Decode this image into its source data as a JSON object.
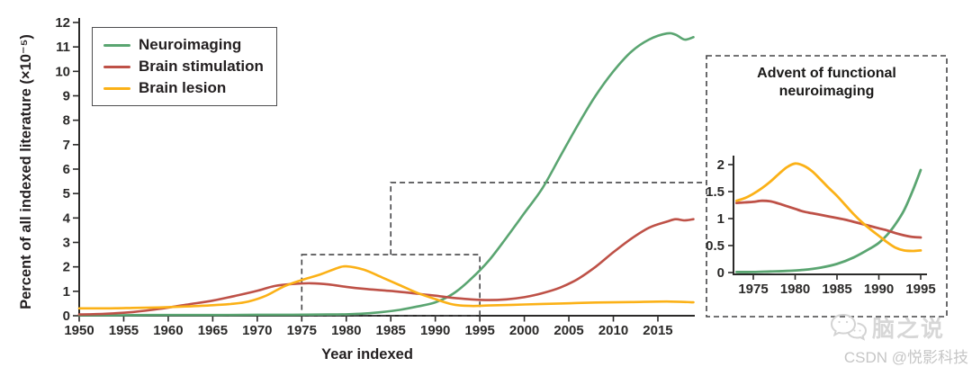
{
  "chart_data": [
    {
      "type": "line",
      "title": "",
      "xlabel": "Year indexed",
      "ylabel": "Percent of all indexed literature (×10⁻⁵)",
      "xlim": [
        1950,
        2019
      ],
      "ylim": [
        0,
        12
      ],
      "x_ticks": [
        1950,
        1955,
        1960,
        1965,
        1970,
        1975,
        1980,
        1985,
        1990,
        1995,
        2000,
        2005,
        2010,
        2015
      ],
      "y_ticks": [
        0,
        1,
        2,
        3,
        4,
        5,
        6,
        7,
        8,
        9,
        10,
        11,
        12
      ],
      "grid": false,
      "legend_position": "upper-left",
      "series": [
        {
          "name": "Neuroimaging",
          "color": "#5aa571",
          "points": [
            [
              1950,
              0.02
            ],
            [
              1954,
              0.02
            ],
            [
              1958,
              0.03
            ],
            [
              1962,
              0.03
            ],
            [
              1966,
              0.03
            ],
            [
              1970,
              0.04
            ],
            [
              1974,
              0.04
            ],
            [
              1978,
              0.05
            ],
            [
              1980,
              0.06
            ],
            [
              1982,
              0.09
            ],
            [
              1984,
              0.15
            ],
            [
              1986,
              0.24
            ],
            [
              1988,
              0.38
            ],
            [
              1990,
              0.55
            ],
            [
              1992,
              0.9
            ],
            [
              1994,
              1.5
            ],
            [
              1996,
              2.25
            ],
            [
              1998,
              3.2
            ],
            [
              2000,
              4.2
            ],
            [
              2002,
              5.2
            ],
            [
              2004,
              6.5
            ],
            [
              2006,
              7.8
            ],
            [
              2008,
              9.0
            ],
            [
              2010,
              10.0
            ],
            [
              2012,
              10.8
            ],
            [
              2014,
              11.3
            ],
            [
              2016,
              11.55
            ],
            [
              2017,
              11.5
            ],
            [
              2018,
              11.3
            ],
            [
              2019,
              11.4
            ]
          ]
        },
        {
          "name": "Brain stimulation",
          "color": "#be5147",
          "points": [
            [
              1950,
              0.05
            ],
            [
              1953,
              0.08
            ],
            [
              1956,
              0.15
            ],
            [
              1959,
              0.28
            ],
            [
              1962,
              0.45
            ],
            [
              1965,
              0.62
            ],
            [
              1968,
              0.85
            ],
            [
              1970,
              1.02
            ],
            [
              1972,
              1.22
            ],
            [
              1974,
              1.3
            ],
            [
              1976,
              1.33
            ],
            [
              1978,
              1.28
            ],
            [
              1980,
              1.18
            ],
            [
              1982,
              1.1
            ],
            [
              1984,
              1.04
            ],
            [
              1986,
              0.98
            ],
            [
              1988,
              0.9
            ],
            [
              1990,
              0.82
            ],
            [
              1992,
              0.73
            ],
            [
              1994,
              0.67
            ],
            [
              1996,
              0.64
            ],
            [
              1998,
              0.67
            ],
            [
              2000,
              0.76
            ],
            [
              2002,
              0.92
            ],
            [
              2004,
              1.15
            ],
            [
              2006,
              1.5
            ],
            [
              2008,
              2.0
            ],
            [
              2010,
              2.6
            ],
            [
              2012,
              3.15
            ],
            [
              2014,
              3.6
            ],
            [
              2016,
              3.85
            ],
            [
              2017,
              3.95
            ],
            [
              2018,
              3.9
            ],
            [
              2019,
              3.95
            ]
          ]
        },
        {
          "name": "Brain lesion",
          "color": "#fbb117",
          "points": [
            [
              1950,
              0.3
            ],
            [
              1953,
              0.3
            ],
            [
              1956,
              0.32
            ],
            [
              1959,
              0.34
            ],
            [
              1962,
              0.38
            ],
            [
              1965,
              0.43
            ],
            [
              1967,
              0.48
            ],
            [
              1969,
              0.58
            ],
            [
              1971,
              0.82
            ],
            [
              1973,
              1.2
            ],
            [
              1975,
              1.46
            ],
            [
              1977,
              1.68
            ],
            [
              1979,
              1.95
            ],
            [
              1980,
              2.02
            ],
            [
              1982,
              1.88
            ],
            [
              1984,
              1.57
            ],
            [
              1986,
              1.25
            ],
            [
              1988,
              0.93
            ],
            [
              1990,
              0.68
            ],
            [
              1992,
              0.46
            ],
            [
              1994,
              0.4
            ],
            [
              1996,
              0.42
            ],
            [
              2000,
              0.46
            ],
            [
              2004,
              0.5
            ],
            [
              2008,
              0.54
            ],
            [
              2012,
              0.56
            ],
            [
              2016,
              0.58
            ],
            [
              2019,
              0.55
            ]
          ]
        }
      ],
      "callout": {
        "region_x": [
          1975,
          1995
        ],
        "region_y": [
          0,
          2.5
        ],
        "step_x": 1985,
        "step_top_y": 5.45,
        "connects_to_inset": true
      }
    },
    {
      "type": "line",
      "title": "Advent of functional neuroimaging",
      "xlabel": "",
      "ylabel": "",
      "xlim": [
        1973,
        1995.6
      ],
      "ylim": [
        0,
        2.15
      ],
      "x_ticks": [
        1975,
        1980,
        1985,
        1990,
        1995
      ],
      "y_ticks": [
        0,
        0.5,
        1,
        1.5,
        2
      ],
      "grid": false,
      "series": [
        {
          "name": "Neuroimaging",
          "color": "#5aa571",
          "points": [
            [
              1973,
              0.01
            ],
            [
              1975,
              0.01
            ],
            [
              1977,
              0.02
            ],
            [
              1979,
              0.03
            ],
            [
              1981,
              0.05
            ],
            [
              1983,
              0.09
            ],
            [
              1985,
              0.16
            ],
            [
              1987,
              0.28
            ],
            [
              1989,
              0.45
            ],
            [
              1990,
              0.55
            ],
            [
              1991,
              0.7
            ],
            [
              1992,
              0.9
            ],
            [
              1993,
              1.15
            ],
            [
              1994,
              1.5
            ],
            [
              1995,
              1.9
            ]
          ]
        },
        {
          "name": "Brain stimulation",
          "color": "#be5147",
          "points": [
            [
              1973,
              1.29
            ],
            [
              1974,
              1.3
            ],
            [
              1975,
              1.31
            ],
            [
              1976,
              1.33
            ],
            [
              1977,
              1.32
            ],
            [
              1978,
              1.28
            ],
            [
              1979,
              1.23
            ],
            [
              1980,
              1.18
            ],
            [
              1981,
              1.13
            ],
            [
              1982,
              1.1
            ],
            [
              1983,
              1.07
            ],
            [
              1984,
              1.04
            ],
            [
              1985,
              1.01
            ],
            [
              1986,
              0.98
            ],
            [
              1987,
              0.94
            ],
            [
              1988,
              0.9
            ],
            [
              1989,
              0.86
            ],
            [
              1990,
              0.82
            ],
            [
              1991,
              0.78
            ],
            [
              1992,
              0.73
            ],
            [
              1993,
              0.69
            ],
            [
              1994,
              0.66
            ],
            [
              1995,
              0.65
            ]
          ]
        },
        {
          "name": "Brain lesion",
          "color": "#fbb117",
          "points": [
            [
              1973,
              1.33
            ],
            [
              1974,
              1.38
            ],
            [
              1975,
              1.46
            ],
            [
              1976,
              1.56
            ],
            [
              1977,
              1.68
            ],
            [
              1978,
              1.82
            ],
            [
              1979,
              1.95
            ],
            [
              1980,
              2.02
            ],
            [
              1981,
              1.98
            ],
            [
              1982,
              1.88
            ],
            [
              1983,
              1.73
            ],
            [
              1984,
              1.57
            ],
            [
              1985,
              1.42
            ],
            [
              1986,
              1.25
            ],
            [
              1987,
              1.08
            ],
            [
              1988,
              0.93
            ],
            [
              1989,
              0.8
            ],
            [
              1990,
              0.68
            ],
            [
              1991,
              0.56
            ],
            [
              1992,
              0.46
            ],
            [
              1993,
              0.41
            ],
            [
              1994,
              0.4
            ],
            [
              1995,
              0.41
            ]
          ]
        }
      ]
    }
  ],
  "colors": {
    "axis": "#2b2a29",
    "dash": "#454547",
    "legend_border": "#4d4d4f"
  },
  "watermark": {
    "brand": "脑之说",
    "credit": "CSDN @悦影科技",
    "icon": "wechat-bubbles-icon"
  }
}
